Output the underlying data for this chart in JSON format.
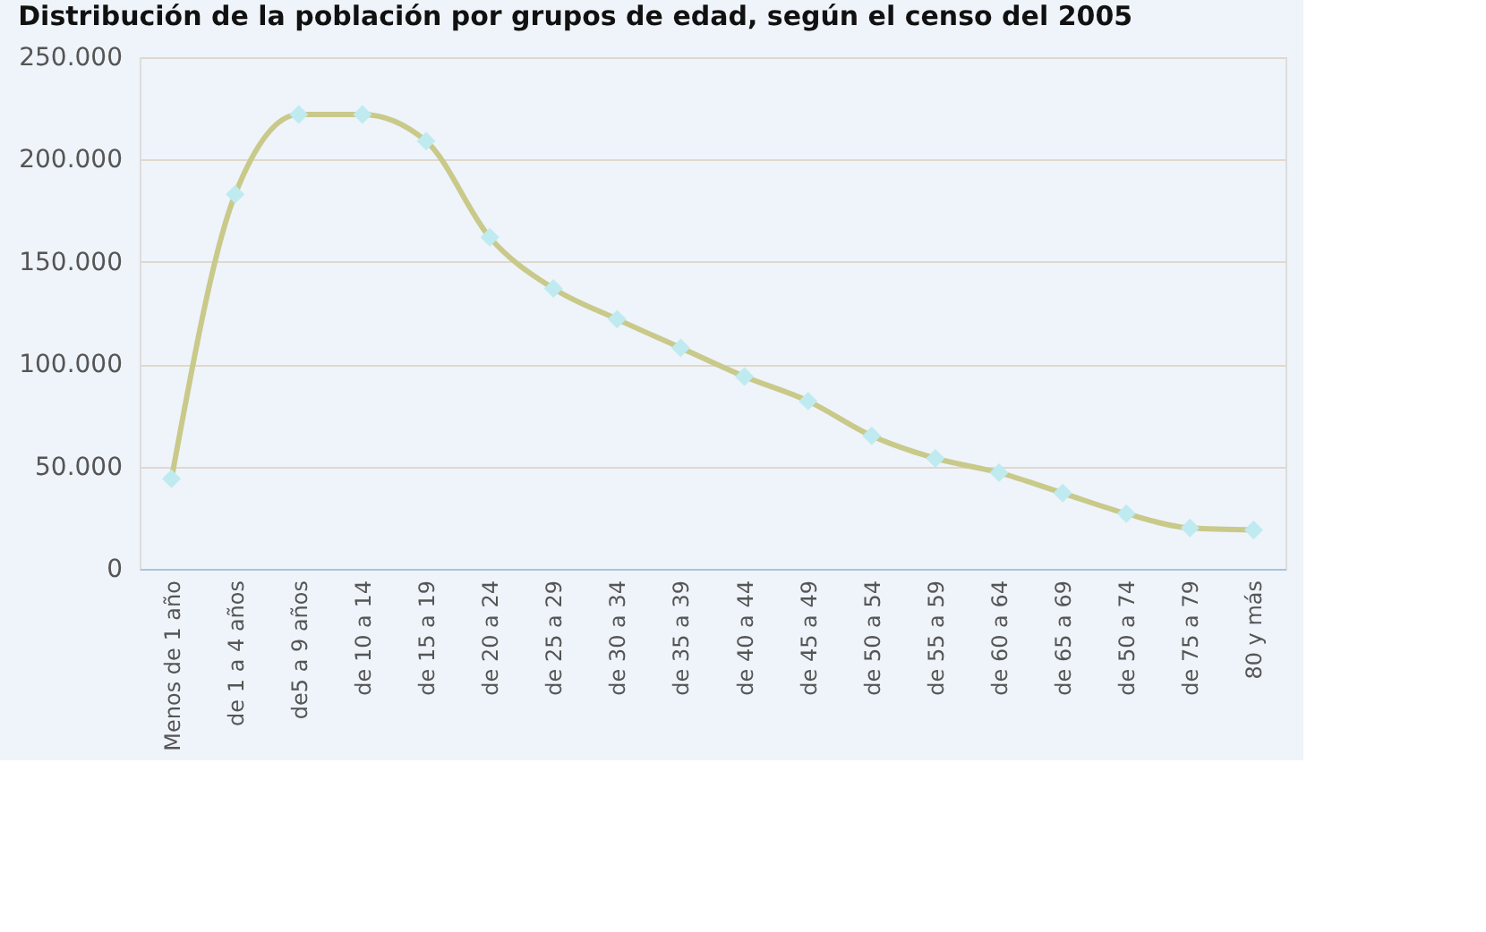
{
  "chart_data": {
    "type": "line",
    "title": "Distribución de la población por grupos de edad, según el censo del 2005",
    "categories": [
      "Menos de 1 año",
      "de 1 a 4 años",
      "de5 a 9 años",
      "de 10 a 14",
      "de 15 a 19",
      "de 20 a 24",
      "de 25 a 29",
      "de 30 a 34",
      "de 35 a 39",
      "de 40 a 44",
      "de 45 a 49",
      "de 50 a 54",
      "de 55 a 59",
      "de 60 a 64",
      "de 65 a 69",
      "de 50 a 74",
      "de 75 a 79",
      "80 y más"
    ],
    "series": [
      {
        "color": "#c9c98a",
        "values": [
          44000,
          183000,
          222000,
          222000,
          209000,
          162000,
          137000,
          122000,
          108000,
          94000,
          82000,
          65000,
          54000,
          47000,
          37000,
          27000,
          20000,
          19000
        ]
      }
    ],
    "ylim": [
      0,
      250000
    ],
    "yticks": [
      {
        "value": 0,
        "label": "0"
      },
      {
        "value": 50000,
        "label": "50.000"
      },
      {
        "value": 100000,
        "label": "100.000"
      },
      {
        "value": 150000,
        "label": "150.000"
      },
      {
        "value": 200000,
        "label": "200.000"
      },
      {
        "value": 250000,
        "label": "250.000"
      }
    ],
    "grid": "y",
    "marker": "diamond",
    "line_style": "solid"
  }
}
